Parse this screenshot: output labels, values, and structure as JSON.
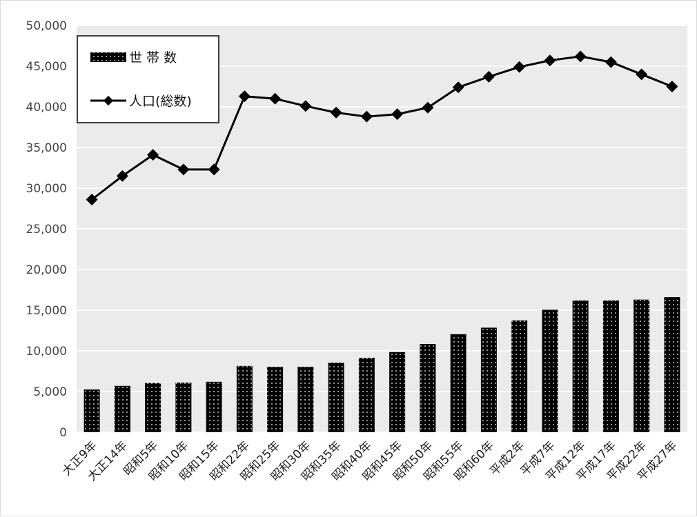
{
  "chart_data": {
    "type": "bar",
    "categories": [
      "大正9年",
      "大正14年",
      "昭和5年",
      "昭和10年",
      "昭和15年",
      "昭和22年",
      "昭和25年",
      "昭和30年",
      "昭和35年",
      "昭和40年",
      "昭和45年",
      "昭和50年",
      "昭和55年",
      "昭和60年",
      "平成2年",
      "平成7年",
      "平成12年",
      "平成17年",
      "平成22年",
      "平成27年"
    ],
    "series": [
      {
        "name": "世 帯 数",
        "type": "bar",
        "values": [
          5250,
          5700,
          6050,
          6100,
          6200,
          8150,
          8050,
          8050,
          8550,
          9150,
          9850,
          10850,
          12050,
          12850,
          13750,
          15050,
          16200,
          16200,
          16300,
          16600
        ]
      },
      {
        "name": "人口(総数)",
        "type": "line",
        "values": [
          28600,
          31500,
          34100,
          32300,
          32300,
          41300,
          41000,
          40100,
          39300,
          38800,
          39100,
          39900,
          42400,
          43700,
          44900,
          45700,
          46200,
          45500,
          44000,
          42500
        ]
      }
    ],
    "y_ticks": [
      "0",
      "5,000",
      "10,000",
      "15,000",
      "20,000",
      "25,000",
      "30,000",
      "35,000",
      "40,000",
      "45,000",
      "50,000"
    ],
    "ylim": [
      0,
      50000
    ],
    "grid": true,
    "legend_position": "top-left",
    "colors": {
      "plot_background": "#ebebeb",
      "bar": "#000000",
      "bar_dots": "#ffffff",
      "line": "#000000",
      "gridline": "#ffffff"
    }
  }
}
